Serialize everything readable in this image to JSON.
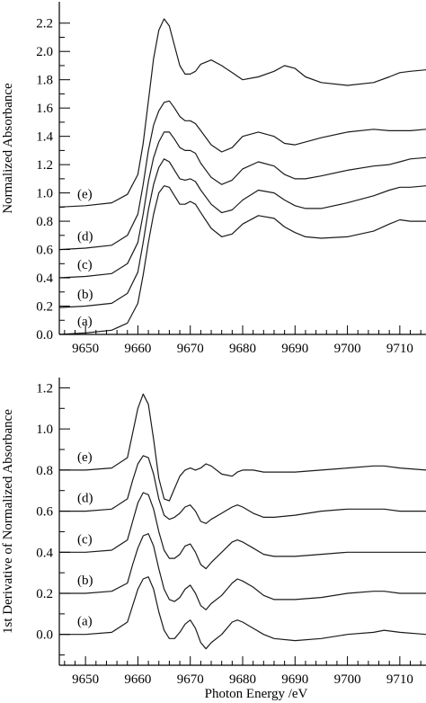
{
  "chart_data": [
    {
      "type": "line",
      "ylabel": "Normalized Absorbance",
      "xlim": [
        9645,
        9715
      ],
      "ylim": [
        0,
        2.3
      ],
      "xticks": [
        9650,
        9660,
        9670,
        9680,
        9690,
        9700,
        9710
      ],
      "yticks": [
        "0.0",
        "0.2",
        "0.4",
        "0.6",
        "0.8",
        "1.0",
        "1.2",
        "1.4",
        "1.6",
        "1.8",
        "2.0",
        "2.2"
      ],
      "series": [
        {
          "name": "(a)",
          "x": [
            9645,
            9650,
            9655,
            9658,
            9660,
            9661,
            9662,
            9663,
            9664,
            9665,
            9666,
            9667,
            9668,
            9669,
            9670,
            9671,
            9672,
            9674,
            9676,
            9678,
            9680,
            9683,
            9686,
            9688,
            9690,
            9692,
            9695,
            9700,
            9705,
            9708,
            9710,
            9712,
            9715
          ],
          "y": [
            0.0,
            0.01,
            0.03,
            0.08,
            0.22,
            0.42,
            0.65,
            0.85,
            1.0,
            1.05,
            1.04,
            0.98,
            0.92,
            0.92,
            0.94,
            0.92,
            0.86,
            0.75,
            0.69,
            0.71,
            0.78,
            0.84,
            0.82,
            0.76,
            0.72,
            0.69,
            0.68,
            0.69,
            0.73,
            0.78,
            0.81,
            0.8,
            0.8
          ]
        },
        {
          "name": "(b)",
          "x": [
            9645,
            9650,
            9655,
            9658,
            9660,
            9661,
            9662,
            9663,
            9664,
            9665,
            9666,
            9667,
            9668,
            9669,
            9670,
            9671,
            9672,
            9674,
            9676,
            9678,
            9680,
            9683,
            9686,
            9688,
            9690,
            9692,
            9695,
            9700,
            9705,
            9708,
            9710,
            9712,
            9715
          ],
          "y": [
            0.19,
            0.2,
            0.22,
            0.29,
            0.44,
            0.65,
            0.88,
            1.06,
            1.18,
            1.24,
            1.22,
            1.16,
            1.1,
            1.09,
            1.1,
            1.08,
            1.02,
            0.92,
            0.86,
            0.88,
            0.95,
            1.02,
            1.0,
            0.95,
            0.91,
            0.89,
            0.89,
            0.93,
            0.98,
            1.02,
            1.04,
            1.04,
            1.05
          ]
        },
        {
          "name": "(c)",
          "x": [
            9645,
            9650,
            9655,
            9658,
            9660,
            9661,
            9662,
            9663,
            9664,
            9665,
            9666,
            9667,
            9668,
            9669,
            9670,
            9671,
            9672,
            9674,
            9676,
            9678,
            9680,
            9683,
            9686,
            9688,
            9690,
            9692,
            9695,
            9700,
            9705,
            9708,
            9710,
            9712,
            9715
          ],
          "y": [
            0.4,
            0.41,
            0.43,
            0.5,
            0.65,
            0.85,
            1.08,
            1.25,
            1.36,
            1.43,
            1.43,
            1.38,
            1.32,
            1.3,
            1.3,
            1.28,
            1.21,
            1.11,
            1.06,
            1.09,
            1.17,
            1.22,
            1.19,
            1.13,
            1.1,
            1.1,
            1.12,
            1.16,
            1.19,
            1.2,
            1.22,
            1.24,
            1.25
          ]
        },
        {
          "name": "(d)",
          "x": [
            9645,
            9650,
            9655,
            9658,
            9660,
            9661,
            9662,
            9663,
            9664,
            9665,
            9666,
            9667,
            9668,
            9669,
            9670,
            9671,
            9672,
            9674,
            9676,
            9678,
            9680,
            9683,
            9686,
            9688,
            9690,
            9692,
            9695,
            9700,
            9705,
            9708,
            9710,
            9712,
            9715
          ],
          "y": [
            0.6,
            0.61,
            0.63,
            0.7,
            0.85,
            1.06,
            1.3,
            1.48,
            1.58,
            1.64,
            1.65,
            1.6,
            1.54,
            1.51,
            1.51,
            1.49,
            1.44,
            1.34,
            1.29,
            1.32,
            1.4,
            1.43,
            1.4,
            1.35,
            1.34,
            1.36,
            1.39,
            1.43,
            1.45,
            1.44,
            1.44,
            1.44,
            1.45
          ]
        },
        {
          "name": "(e)",
          "x": [
            9645,
            9650,
            9655,
            9658,
            9660,
            9661,
            9662,
            9663,
            9664,
            9665,
            9666,
            9667,
            9668,
            9669,
            9670,
            9671,
            9672,
            9674,
            9676,
            9678,
            9680,
            9683,
            9686,
            9688,
            9690,
            9692,
            9695,
            9700,
            9705,
            9708,
            9710,
            9712,
            9715
          ],
          "y": [
            0.9,
            0.91,
            0.93,
            0.99,
            1.13,
            1.35,
            1.65,
            1.95,
            2.15,
            2.23,
            2.18,
            2.04,
            1.9,
            1.84,
            1.84,
            1.86,
            1.91,
            1.94,
            1.9,
            1.85,
            1.8,
            1.82,
            1.86,
            1.9,
            1.88,
            1.82,
            1.78,
            1.76,
            1.78,
            1.82,
            1.85,
            1.86,
            1.87
          ]
        }
      ]
    },
    {
      "type": "line",
      "ylabel": "1st Derivative of Normalized Absorbance",
      "xlabel": "Photon Energy /eV",
      "xlim": [
        9645,
        9715
      ],
      "ylim": [
        -0.15,
        1.25
      ],
      "xticks": [
        9650,
        9660,
        9670,
        9680,
        9690,
        9700,
        9710
      ],
      "yticks": [
        "0.0",
        "0.2",
        "0.4",
        "0.6",
        "0.8",
        "1.0",
        "1.2"
      ],
      "series": [
        {
          "name": "(a)",
          "x": [
            9645,
            9650,
            9655,
            9658,
            9659,
            9660,
            9661,
            9662,
            9663,
            9664,
            9665,
            9666,
            9667,
            9668,
            9669,
            9670,
            9671,
            9672,
            9673,
            9674,
            9676,
            9678,
            9679,
            9680,
            9682,
            9684,
            9686,
            9690,
            9695,
            9700,
            9705,
            9707,
            9710,
            9715
          ],
          "y": [
            0.0,
            0.0,
            0.01,
            0.06,
            0.14,
            0.22,
            0.27,
            0.28,
            0.22,
            0.11,
            0.02,
            -0.02,
            -0.02,
            0.01,
            0.05,
            0.07,
            0.03,
            -0.04,
            -0.07,
            -0.04,
            0.0,
            0.06,
            0.07,
            0.06,
            0.03,
            0.0,
            -0.02,
            -0.03,
            -0.02,
            0.0,
            0.01,
            0.02,
            0.01,
            0.0
          ]
        },
        {
          "name": "(b)",
          "x": [
            9645,
            9650,
            9655,
            9658,
            9659,
            9660,
            9661,
            9662,
            9663,
            9664,
            9665,
            9666,
            9667,
            9668,
            9669,
            9670,
            9671,
            9672,
            9673,
            9674,
            9676,
            9678,
            9679,
            9680,
            9682,
            9684,
            9686,
            9690,
            9695,
            9700,
            9705,
            9707,
            9710,
            9715
          ],
          "y": [
            0.2,
            0.2,
            0.21,
            0.25,
            0.34,
            0.42,
            0.48,
            0.49,
            0.43,
            0.32,
            0.22,
            0.17,
            0.16,
            0.18,
            0.22,
            0.24,
            0.2,
            0.14,
            0.12,
            0.15,
            0.19,
            0.25,
            0.27,
            0.26,
            0.23,
            0.19,
            0.17,
            0.17,
            0.18,
            0.2,
            0.21,
            0.21,
            0.2,
            0.2
          ]
        },
        {
          "name": "(c)",
          "x": [
            9645,
            9650,
            9655,
            9658,
            9659,
            9660,
            9661,
            9662,
            9663,
            9664,
            9665,
            9666,
            9667,
            9668,
            9669,
            9670,
            9671,
            9672,
            9673,
            9674,
            9676,
            9678,
            9679,
            9680,
            9682,
            9684,
            9686,
            9690,
            9695,
            9700,
            9705,
            9707,
            9710,
            9715
          ],
          "y": [
            0.4,
            0.4,
            0.41,
            0.46,
            0.55,
            0.64,
            0.69,
            0.68,
            0.61,
            0.5,
            0.41,
            0.37,
            0.37,
            0.39,
            0.43,
            0.44,
            0.4,
            0.34,
            0.32,
            0.35,
            0.4,
            0.45,
            0.46,
            0.45,
            0.42,
            0.39,
            0.38,
            0.38,
            0.39,
            0.4,
            0.4,
            0.4,
            0.4,
            0.4
          ]
        },
        {
          "name": "(d)",
          "x": [
            9645,
            9650,
            9655,
            9658,
            9659,
            9660,
            9661,
            9662,
            9663,
            9664,
            9665,
            9666,
            9667,
            9668,
            9669,
            9670,
            9671,
            9672,
            9673,
            9674,
            9676,
            9678,
            9679,
            9680,
            9682,
            9684,
            9686,
            9690,
            9695,
            9700,
            9705,
            9707,
            9710,
            9715
          ],
          "y": [
            0.6,
            0.6,
            0.61,
            0.66,
            0.75,
            0.83,
            0.87,
            0.86,
            0.78,
            0.66,
            0.58,
            0.56,
            0.57,
            0.59,
            0.62,
            0.63,
            0.6,
            0.55,
            0.54,
            0.56,
            0.59,
            0.62,
            0.63,
            0.62,
            0.59,
            0.57,
            0.57,
            0.58,
            0.6,
            0.61,
            0.61,
            0.61,
            0.6,
            0.6
          ]
        },
        {
          "name": "(e)",
          "x": [
            9645,
            9650,
            9655,
            9658,
            9659,
            9660,
            9661,
            9662,
            9663,
            9664,
            9665,
            9666,
            9667,
            9668,
            9669,
            9670,
            9671,
            9672,
            9673,
            9674,
            9676,
            9678,
            9679,
            9680,
            9682,
            9684,
            9686,
            9690,
            9695,
            9700,
            9705,
            9707,
            9710,
            9715
          ],
          "y": [
            0.8,
            0.8,
            0.81,
            0.86,
            0.98,
            1.1,
            1.17,
            1.12,
            0.95,
            0.76,
            0.66,
            0.65,
            0.71,
            0.77,
            0.8,
            0.81,
            0.8,
            0.81,
            0.83,
            0.82,
            0.78,
            0.77,
            0.79,
            0.8,
            0.8,
            0.79,
            0.79,
            0.79,
            0.8,
            0.81,
            0.82,
            0.82,
            0.81,
            0.8
          ]
        }
      ]
    }
  ]
}
